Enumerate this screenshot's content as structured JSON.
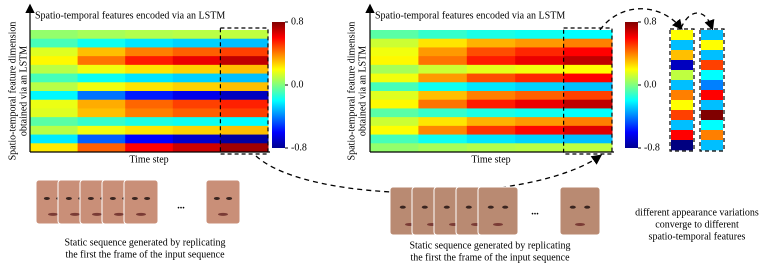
{
  "panels": [
    {
      "title": "Spatio-temporal features encoded via an LSTM",
      "y_label": [
        "Spatio-temporal feature dimension",
        "obtained via an LSTM"
      ],
      "x_label": "Time step",
      "heatmap": {
        "clim": [
          -0.8,
          0.8
        ],
        "ticks": [
          0.8,
          {
            "value": 0,
            "label": "0.0"
          },
          -0.8
        ],
        "rows": [
          [
            0.03,
            0.06,
            0.08,
            0.09,
            0.1
          ],
          [
            -0.09,
            -0.18,
            -0.24,
            -0.27,
            -0.3
          ],
          [
            0.15,
            0.3,
            0.4,
            0.45,
            0.5
          ],
          [
            0.21,
            0.42,
            0.56,
            0.63,
            0.7
          ],
          [
            0.09,
            0.18,
            0.24,
            0.27,
            0.3
          ],
          [
            -0.09,
            -0.18,
            -0.24,
            -0.27,
            -0.3
          ],
          [
            0.09,
            0.18,
            0.24,
            0.27,
            0.3
          ],
          [
            -0.21,
            -0.42,
            -0.56,
            -0.63,
            -0.7
          ],
          [
            0.17,
            0.33,
            0.44,
            0.5,
            0.55
          ],
          [
            0.15,
            0.3,
            0.4,
            0.45,
            0.5
          ],
          [
            -0.06,
            -0.12,
            -0.16,
            -0.18,
            -0.2
          ],
          [
            0.09,
            0.18,
            0.24,
            0.27,
            0.3
          ],
          [
            -0.23,
            -0.45,
            -0.6,
            -0.68,
            -0.75
          ],
          [
            0.23,
            0.45,
            0.6,
            0.68,
            0.75
          ]
        ]
      },
      "ellipsis": "...",
      "caption": [
        "Static sequence generated by replicating",
        "the first the frame of the input sequence"
      ]
    },
    {
      "title": "Spatio-temporal features encoded via an LSTM",
      "y_label": [
        "Spatio-temporal feature dimension",
        "obtained via an LSTM"
      ],
      "x_label": "Time step",
      "heatmap": {
        "clim": [
          -0.8,
          0.8
        ],
        "ticks": [
          0.8,
          {
            "value": 0,
            "label": "0.0"
          },
          -0.8
        ],
        "rows": [
          [
            -0.06,
            -0.12,
            -0.16,
            -0.18,
            -0.2
          ],
          [
            0.12,
            0.24,
            0.32,
            0.36,
            0.4
          ],
          [
            0.18,
            0.36,
            0.48,
            0.54,
            0.6
          ],
          [
            0.21,
            0.42,
            0.56,
            0.63,
            0.7
          ],
          [
            0.06,
            0.12,
            0.16,
            0.18,
            0.2
          ],
          [
            0.18,
            0.36,
            0.48,
            0.54,
            0.6
          ],
          [
            -0.09,
            -0.18,
            -0.24,
            -0.27,
            -0.3
          ],
          [
            0.15,
            0.3,
            0.4,
            0.45,
            0.5
          ],
          [
            0.21,
            0.42,
            0.56,
            0.63,
            0.7
          ],
          [
            -0.06,
            -0.12,
            -0.16,
            -0.18,
            -0.2
          ],
          [
            0.12,
            0.24,
            0.32,
            0.36,
            0.4
          ],
          [
            0.2,
            0.39,
            0.52,
            0.59,
            0.65
          ],
          [
            -0.09,
            -0.18,
            -0.24,
            -0.27,
            -0.3
          ],
          [
            0.03,
            0.06,
            0.08,
            0.09,
            0.1
          ]
        ]
      },
      "ellipsis": "...",
      "caption": [
        "Static sequence generated by replicating",
        "the first the frame of the input sequence"
      ]
    }
  ],
  "strips": [
    {
      "values": [
        0.2,
        -0.3,
        0.3,
        -0.7,
        0.1,
        -0.3,
        0.4,
        0.2,
        0.5,
        -0.3,
        0.6,
        -0.8
      ]
    },
    {
      "values": [
        -0.3,
        0.2,
        -0.3,
        0.5,
        -0.2,
        -0.4,
        0.6,
        -0.3,
        0.8,
        -0.2,
        0.4,
        -0.3
      ]
    }
  ],
  "note": [
    "different appearance variations",
    "converge to different",
    "spatio-temporal features"
  ]
}
